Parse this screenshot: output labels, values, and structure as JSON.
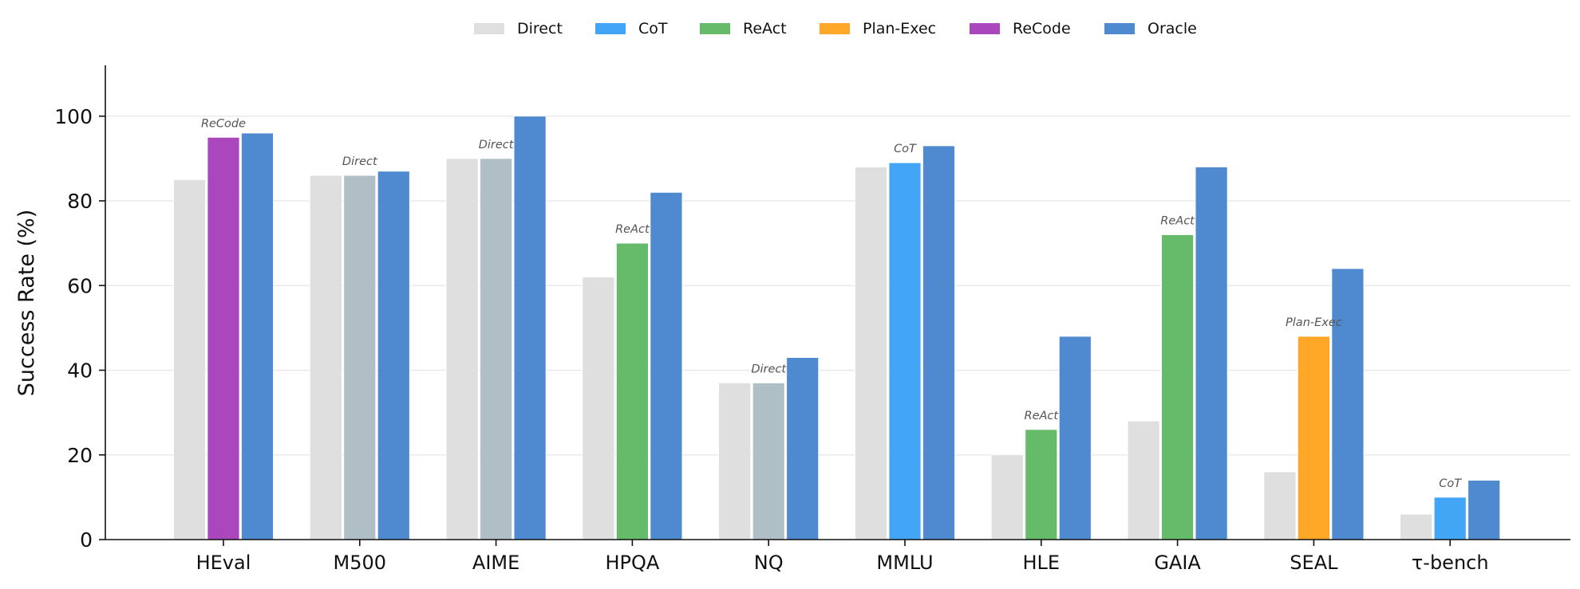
{
  "chart_data": {
    "type": "bar",
    "ylabel": "Success Rate (%)",
    "xlabel": "",
    "ylim": [
      0,
      112
    ],
    "yticks": [
      "0",
      "20",
      "40",
      "60",
      "80",
      "100"
    ],
    "grid": "horizontal",
    "legend_position": "top-center",
    "legend": [
      {
        "name": "Direct",
        "color": "#dfdfdf"
      },
      {
        "name": "CoT",
        "color": "#42a5f5"
      },
      {
        "name": "ReAct",
        "color": "#66bb6a"
      },
      {
        "name": "Plan-Exec",
        "color": "#ffa726"
      },
      {
        "name": "ReCode",
        "color": "#ab47bc"
      },
      {
        "name": "Oracle",
        "color": "#4f8ad0"
      }
    ],
    "annotation_color_when_equal_to_direct": "#b0bec5",
    "categories": [
      "HEval",
      "M500",
      "AIME",
      "HPQA",
      "NQ",
      "MMLU",
      "HLE",
      "GAIA",
      "SEAL",
      "τ-bench"
    ],
    "groups": [
      {
        "category": "HEval",
        "direct": 85,
        "best": 95,
        "best_method": "ReCode",
        "oracle": 96
      },
      {
        "category": "M500",
        "direct": 86,
        "best": 86,
        "best_method": "Direct",
        "oracle": 87
      },
      {
        "category": "AIME",
        "direct": 90,
        "best": 90,
        "best_method": "Direct",
        "oracle": 100
      },
      {
        "category": "HPQA",
        "direct": 62,
        "best": 70,
        "best_method": "ReAct",
        "oracle": 82
      },
      {
        "category": "NQ",
        "direct": 37,
        "best": 37,
        "best_method": "Direct",
        "oracle": 43
      },
      {
        "category": "MMLU",
        "direct": 88,
        "best": 89,
        "best_method": "CoT",
        "oracle": 93
      },
      {
        "category": "HLE",
        "direct": 20,
        "best": 26,
        "best_method": "ReAct",
        "oracle": 48
      },
      {
        "category": "GAIA",
        "direct": 28,
        "best": 72,
        "best_method": "ReAct",
        "oracle": 88
      },
      {
        "category": "SEAL",
        "direct": 16,
        "best": 48,
        "best_method": "Plan-Exec",
        "oracle": 64
      },
      {
        "category": "τ-bench",
        "direct": 6,
        "best": 10,
        "best_method": "CoT",
        "oracle": 14
      }
    ]
  }
}
